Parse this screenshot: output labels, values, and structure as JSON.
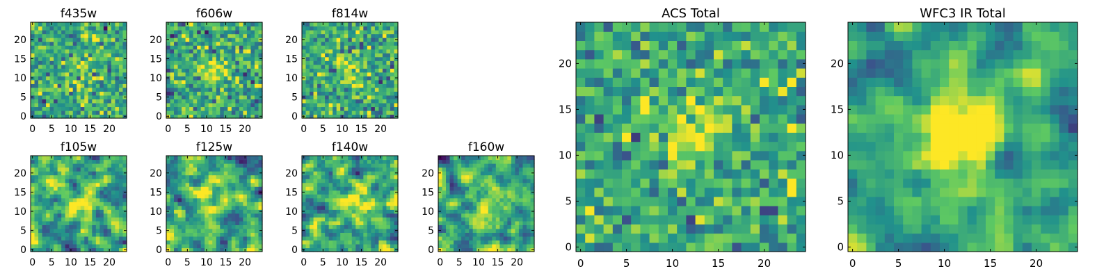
{
  "figure": {
    "colormap": "viridis",
    "colors": [
      "#440154",
      "#3b528b",
      "#21918c",
      "#5ec962",
      "#fde725"
    ],
    "background": "#ffffff"
  },
  "chart_data": [
    {
      "type": "heatmap",
      "title": "f435w",
      "grid": false,
      "xlim": [
        0,
        24
      ],
      "ylim": [
        0,
        24
      ],
      "xticks": [
        "0",
        "5",
        "10",
        "15",
        "20"
      ],
      "yticks": [
        "0",
        "5",
        "10",
        "15",
        "20"
      ],
      "pattern": {
        "seed": 11,
        "peak": 0.35,
        "noise": 1.0,
        "smooth": 0,
        "cx": 12,
        "cy": 13,
        "sigma": 3.0
      }
    },
    {
      "type": "heatmap",
      "title": "f606w",
      "grid": false,
      "xlim": [
        0,
        24
      ],
      "ylim": [
        0,
        24
      ],
      "xticks": [
        "0",
        "5",
        "10",
        "15",
        "20"
      ],
      "yticks": [
        "0",
        "5",
        "10",
        "15",
        "20"
      ],
      "pattern": {
        "seed": 23,
        "peak": 0.6,
        "noise": 0.9,
        "smooth": 0,
        "cx": 12,
        "cy": 12,
        "sigma": 2.5
      }
    },
    {
      "type": "heatmap",
      "title": "f814w",
      "grid": false,
      "xlim": [
        0,
        24
      ],
      "ylim": [
        0,
        24
      ],
      "xticks": [
        "0",
        "5",
        "10",
        "15",
        "20"
      ],
      "yticks": [
        "0",
        "5",
        "10",
        "15",
        "20"
      ],
      "pattern": {
        "seed": 37,
        "peak": 0.55,
        "noise": 0.95,
        "smooth": 0,
        "cx": 12,
        "cy": 12,
        "sigma": 2.5
      }
    },
    {
      "type": "heatmap",
      "title": "f105w",
      "grid": false,
      "xlim": [
        0,
        24
      ],
      "ylim": [
        0,
        24
      ],
      "xticks": [
        "0",
        "5",
        "10",
        "15",
        "20"
      ],
      "yticks": [
        "0",
        "5",
        "10",
        "15",
        "20"
      ],
      "pattern": {
        "seed": 41,
        "peak": 0.5,
        "noise": 1.0,
        "smooth": 1,
        "cx": 12,
        "cy": 12,
        "sigma": 3.5
      }
    },
    {
      "type": "heatmap",
      "title": "f125w",
      "grid": false,
      "xlim": [
        0,
        24
      ],
      "ylim": [
        0,
        24
      ],
      "xticks": [
        "0",
        "5",
        "10",
        "15",
        "20"
      ],
      "yticks": [
        "0",
        "5",
        "10",
        "15",
        "20"
      ],
      "pattern": {
        "seed": 53,
        "peak": 0.5,
        "noise": 1.0,
        "smooth": 1,
        "cx": 12,
        "cy": 10,
        "sigma": 3.5
      }
    },
    {
      "type": "heatmap",
      "title": "f140w",
      "grid": false,
      "xlim": [
        0,
        24
      ],
      "ylim": [
        0,
        24
      ],
      "xticks": [
        "0",
        "5",
        "10",
        "15",
        "20"
      ],
      "yticks": [
        "0",
        "5",
        "10",
        "15",
        "20"
      ],
      "pattern": {
        "seed": 67,
        "peak": 0.6,
        "noise": 1.0,
        "smooth": 1,
        "cx": 13,
        "cy": 12,
        "sigma": 3.0
      }
    },
    {
      "type": "heatmap",
      "title": "f160w",
      "grid": false,
      "xlim": [
        0,
        24
      ],
      "ylim": [
        0,
        24
      ],
      "xticks": [
        "0",
        "5",
        "10",
        "15",
        "20"
      ],
      "yticks": [
        "0",
        "5",
        "10",
        "15",
        "20"
      ],
      "pattern": {
        "seed": 79,
        "peak": 0.65,
        "noise": 1.0,
        "smooth": 1,
        "cx": 12,
        "cy": 12,
        "sigma": 3.0
      }
    },
    {
      "type": "heatmap",
      "title": "ACS Total",
      "grid": false,
      "xlim": [
        0,
        24
      ],
      "ylim": [
        0,
        24
      ],
      "xticks": [
        "0",
        "5",
        "10",
        "15",
        "20"
      ],
      "yticks": [
        "0",
        "5",
        "10",
        "15",
        "20"
      ],
      "pattern": {
        "seed": 97,
        "peak": 0.9,
        "noise": 0.75,
        "smooth": 0,
        "cx": 12,
        "cy": 12.5,
        "sigma": 2.5
      }
    },
    {
      "type": "heatmap",
      "title": "WFC3 IR Total",
      "grid": false,
      "xlim": [
        0,
        24
      ],
      "ylim": [
        0,
        24
      ],
      "xticks": [
        "0",
        "5",
        "10",
        "15",
        "20"
      ],
      "yticks": [
        "0",
        "5",
        "10",
        "15",
        "20"
      ],
      "pattern": {
        "seed": 131,
        "peak": 1.1,
        "noise": 0.6,
        "smooth": 1,
        "cx": 12,
        "cy": 12.5,
        "sigma": 2.8
      }
    }
  ]
}
